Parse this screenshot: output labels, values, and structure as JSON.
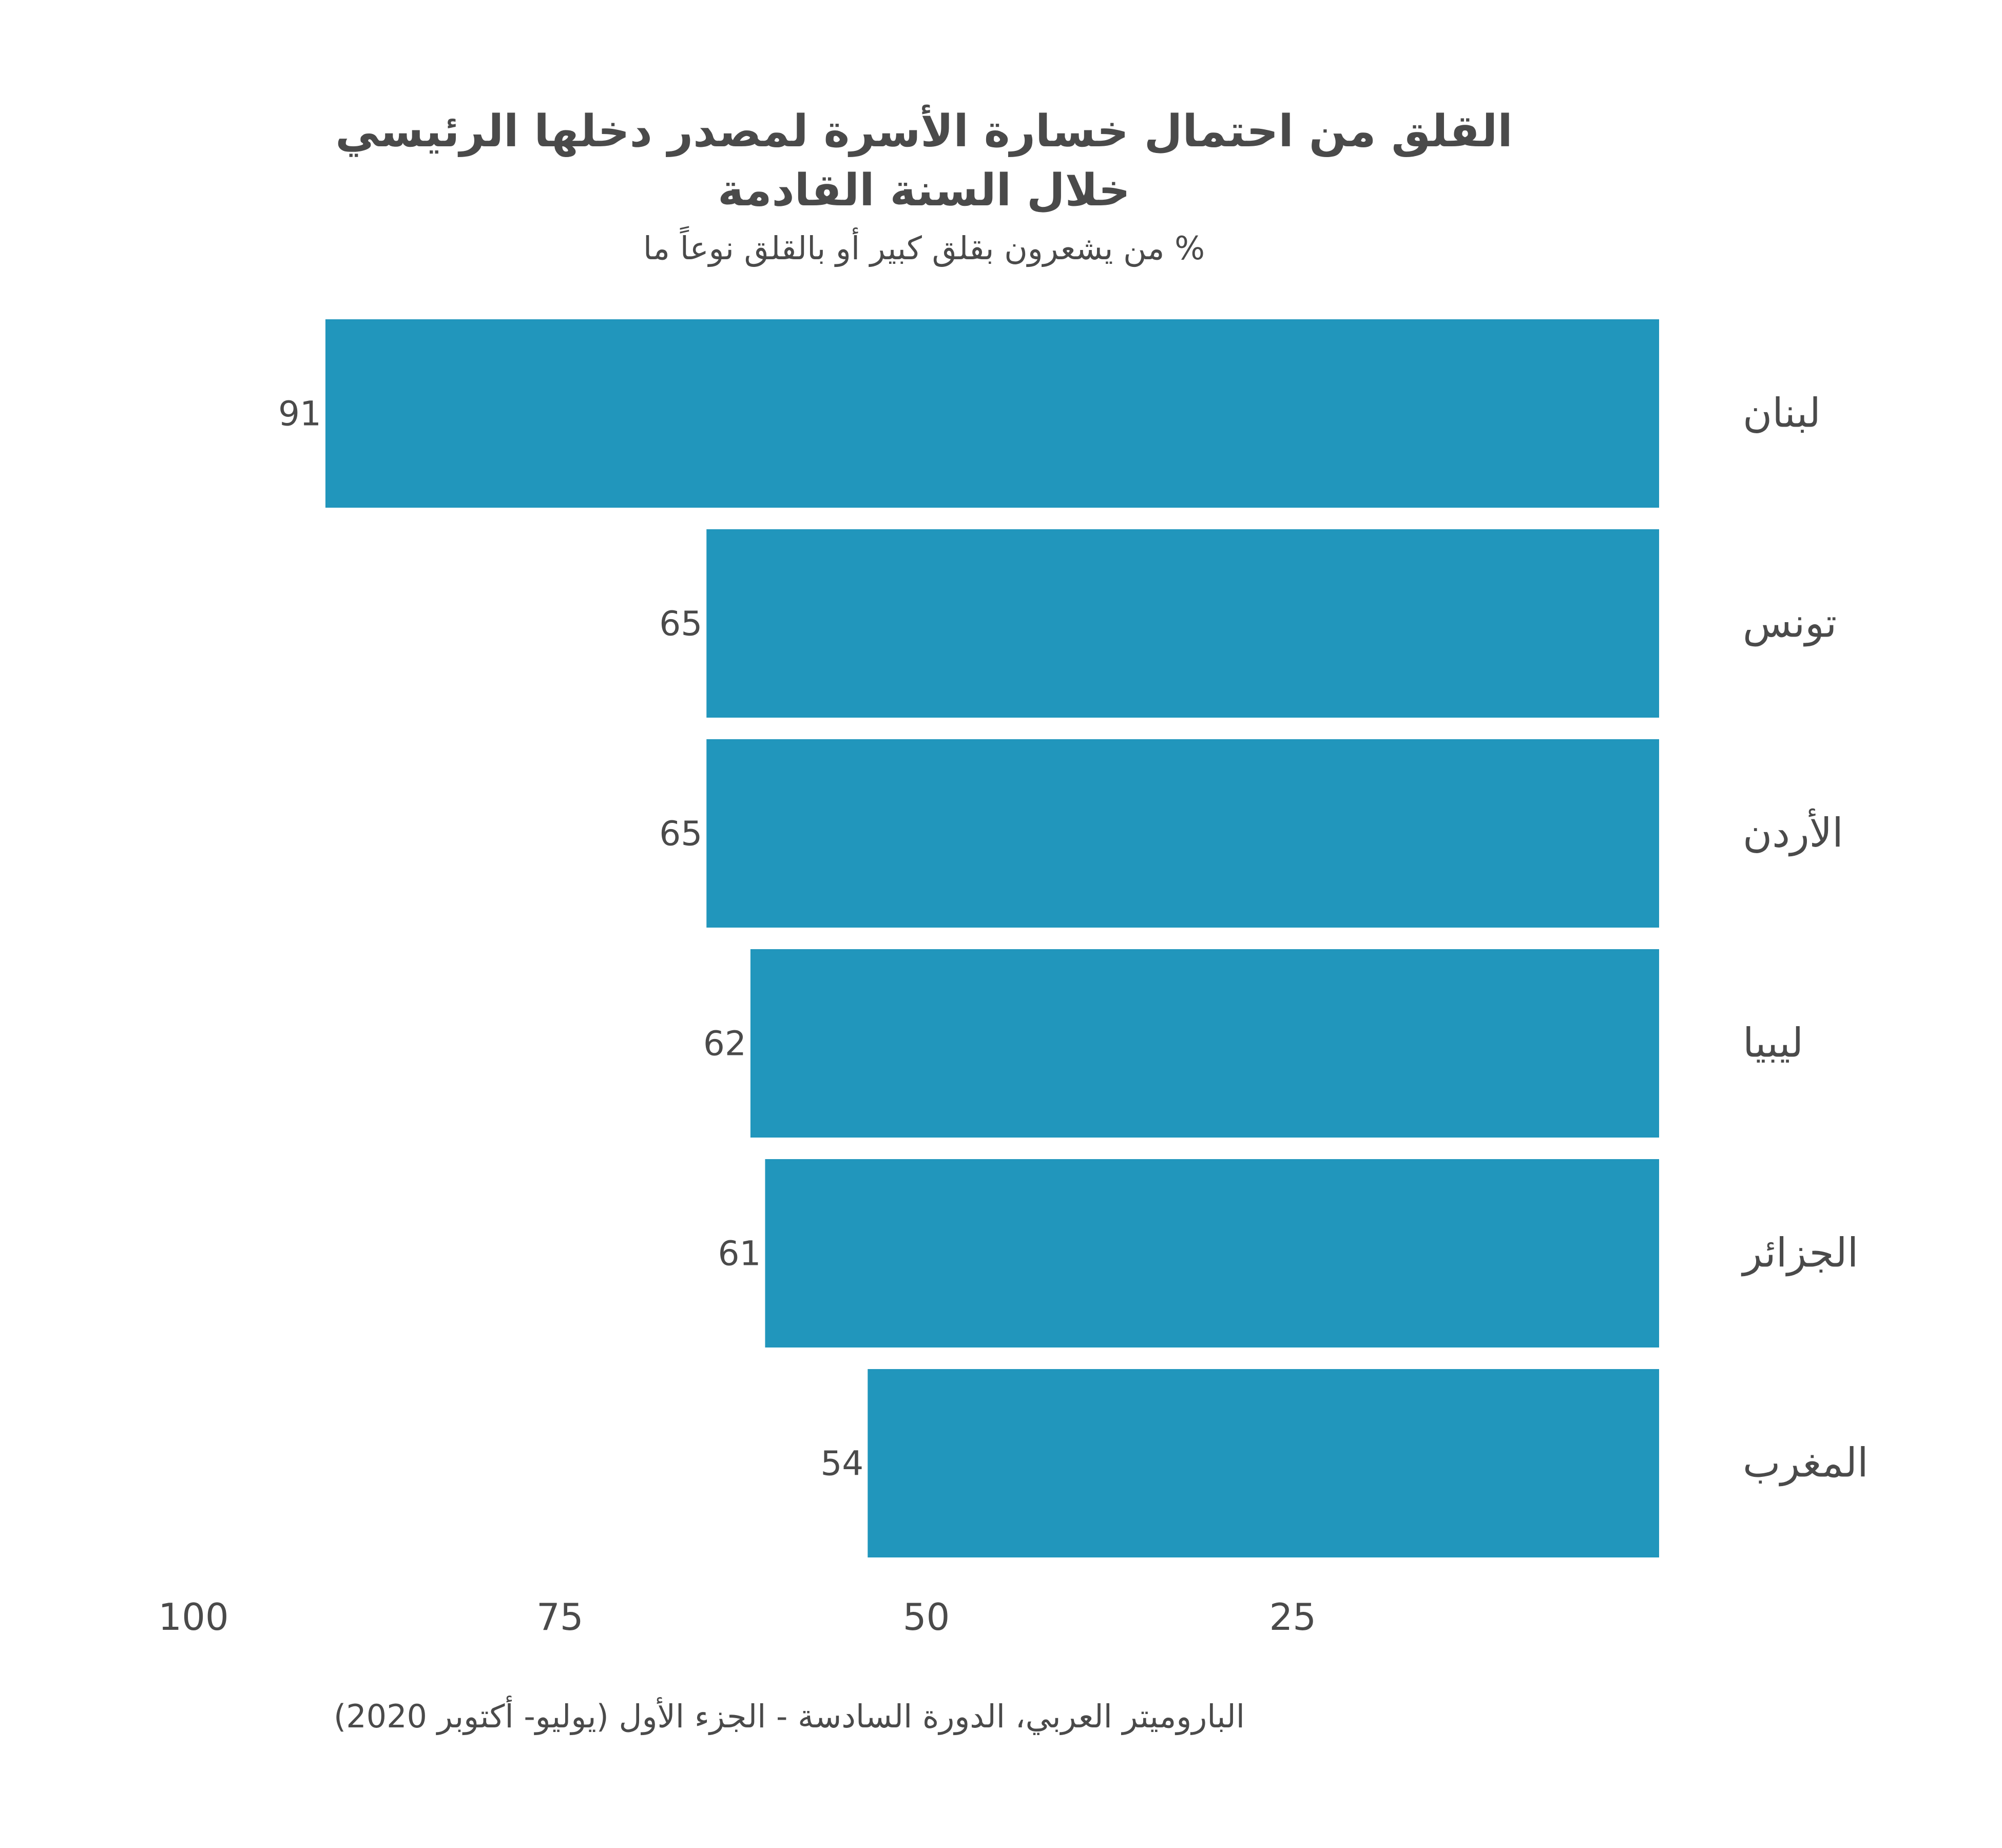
{
  "chart_data": {
    "type": "bar",
    "orientation": "horizontal",
    "title_lines": [
      "القلق من احتمال خسارة الأسرة لمصدر دخلها الرئيسي",
      "خلال السنة القادمة"
    ],
    "subtitle": "% من يشعرون بقلق كبير أو بالقلق نوعاً ما",
    "categories": [
      "لبنان",
      "تونس",
      "الأردن",
      "ليبيا",
      "الجزائر",
      "المغرب"
    ],
    "values": [
      91,
      65,
      65,
      62,
      61,
      54
    ],
    "xlim": [
      0,
      100
    ],
    "x_reversed": true,
    "xticks": [
      100,
      75,
      50,
      25
    ],
    "grid": false,
    "legend": "none",
    "bar_color": "#2196bc",
    "source": "الباروميتر العربي، الدورة السادسة - الجزء الأول (يوليو- أكتوبر 2020)"
  }
}
